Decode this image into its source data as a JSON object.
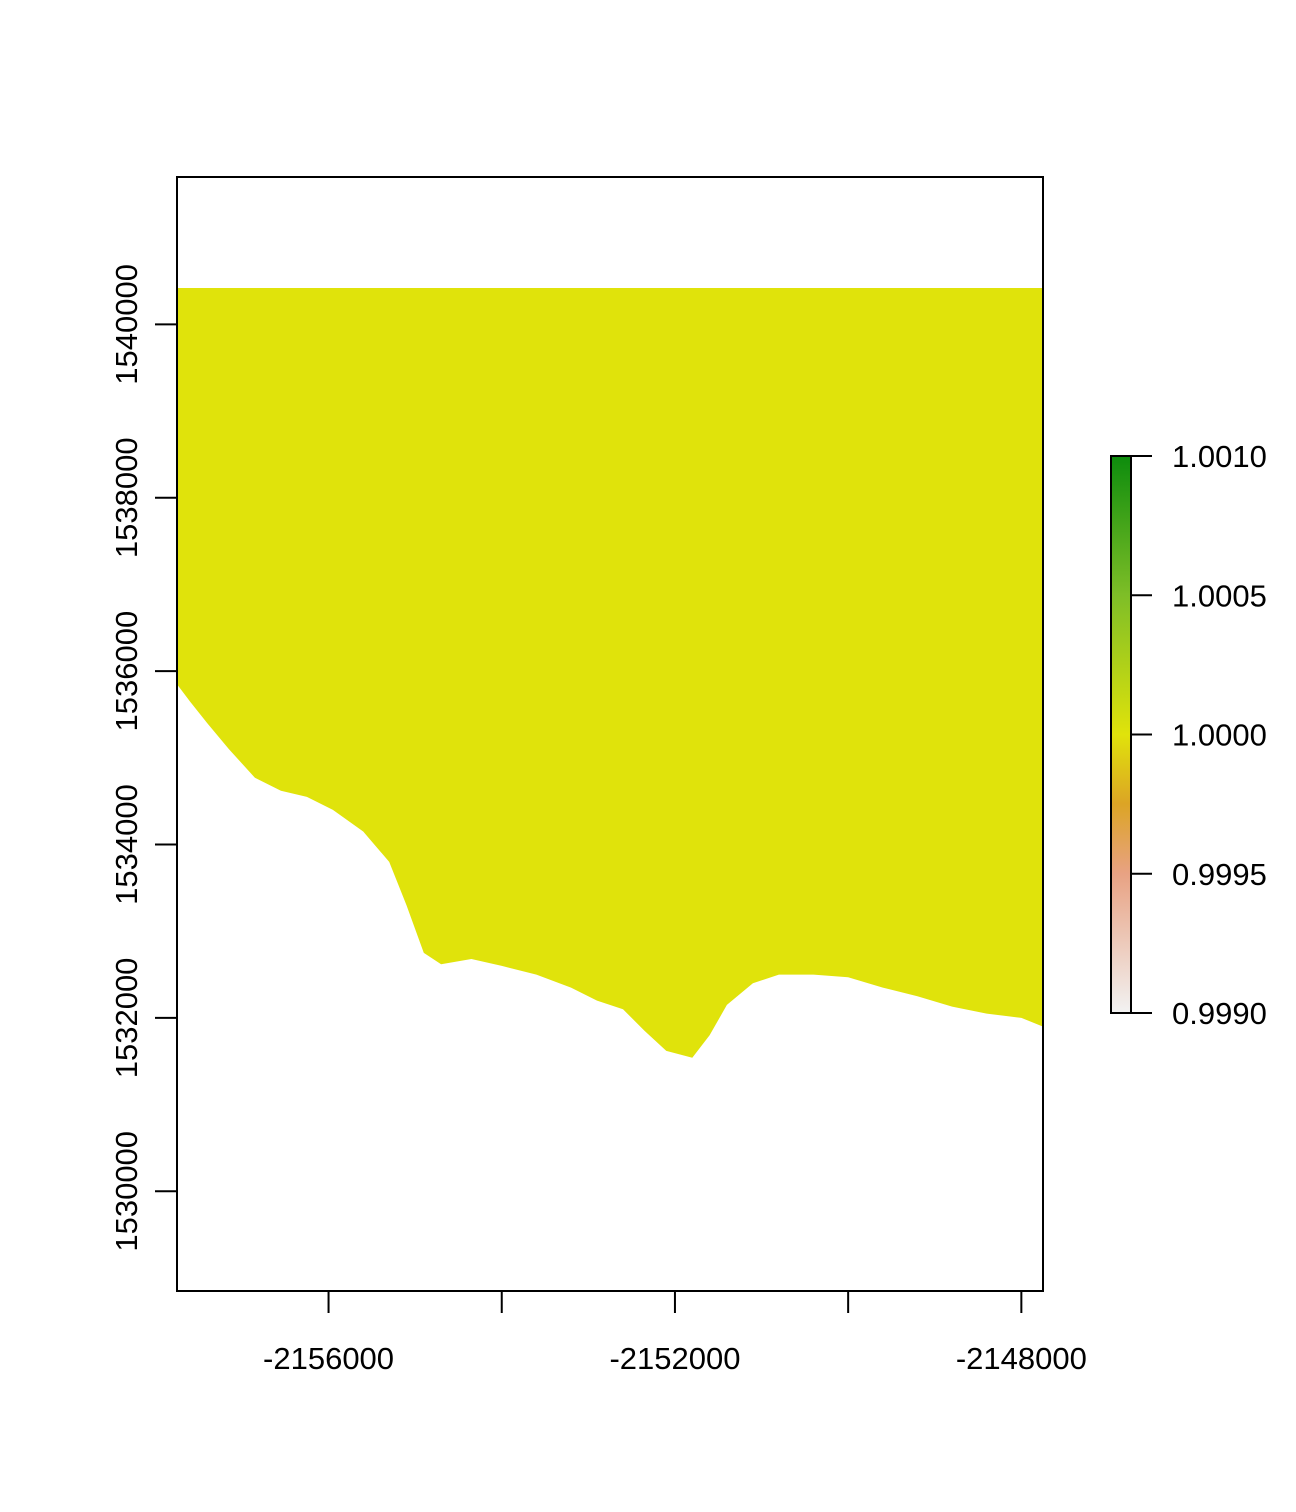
{
  "chart_data": {
    "type": "heatmap",
    "title": "",
    "xlabel": "",
    "ylabel": "",
    "xlim": [
      -2157750,
      -2147750
    ],
    "ylim": [
      1528850,
      1541700
    ],
    "x_ticks": [
      -2156000,
      -2154000,
      -2152000,
      -2150000,
      -2148000
    ],
    "x_tick_labels": [
      "-2156000",
      "",
      "-2152000",
      "",
      "-2148000"
    ],
    "y_ticks": [
      1530000,
      1532000,
      1534000,
      1536000,
      1538000,
      1540000
    ],
    "y_tick_labels": [
      "1530000",
      "1532000",
      "1534000",
      "1536000",
      "1538000",
      "1540000"
    ],
    "raster": {
      "value": 1.0,
      "color": "#E0E30B",
      "top_y": 1540420,
      "southern_edge": [
        [
          -2157750,
          1535850
        ],
        [
          -2157600,
          1535650
        ],
        [
          -2157400,
          1535400
        ],
        [
          -2157150,
          1535100
        ],
        [
          -2156850,
          1534770
        ],
        [
          -2156550,
          1534620
        ],
        [
          -2156250,
          1534550
        ],
        [
          -2155950,
          1534400
        ],
        [
          -2155600,
          1534150
        ],
        [
          -2155300,
          1533800
        ],
        [
          -2155100,
          1533300
        ],
        [
          -2154900,
          1532750
        ],
        [
          -2154700,
          1532620
        ],
        [
          -2154350,
          1532680
        ],
        [
          -2154000,
          1532600
        ],
        [
          -2153600,
          1532500
        ],
        [
          -2153200,
          1532350
        ],
        [
          -2152900,
          1532200
        ],
        [
          -2152600,
          1532100
        ],
        [
          -2152350,
          1531850
        ],
        [
          -2152100,
          1531620
        ],
        [
          -2151800,
          1531540
        ],
        [
          -2151600,
          1531800
        ],
        [
          -2151400,
          1532150
        ],
        [
          -2151100,
          1532400
        ],
        [
          -2150800,
          1532500
        ],
        [
          -2150400,
          1532500
        ],
        [
          -2150000,
          1532470
        ],
        [
          -2149600,
          1532350
        ],
        [
          -2149200,
          1532250
        ],
        [
          -2148800,
          1532130
        ],
        [
          -2148400,
          1532050
        ],
        [
          -2148000,
          1532000
        ],
        [
          -2147750,
          1531900
        ]
      ]
    },
    "legend": {
      "placement": "right",
      "min": 0.999,
      "max": 1.001,
      "ticks": [
        0.999,
        0.9995,
        1.0,
        1.0005,
        1.001
      ],
      "tick_labels": [
        "0.9990",
        "0.9995",
        "1.0000",
        "1.0005",
        "1.0010"
      ],
      "color_stops": [
        {
          "value": 0.999,
          "color": "#F2F2F2"
        },
        {
          "value": 0.9995,
          "color": "#E8A283"
        },
        {
          "value": 0.99975,
          "color": "#DCA425"
        },
        {
          "value": 1.0,
          "color": "#E0E30B"
        },
        {
          "value": 1.0005,
          "color": "#7EBE27"
        },
        {
          "value": 1.001,
          "color": "#0D8C0D"
        }
      ]
    }
  }
}
